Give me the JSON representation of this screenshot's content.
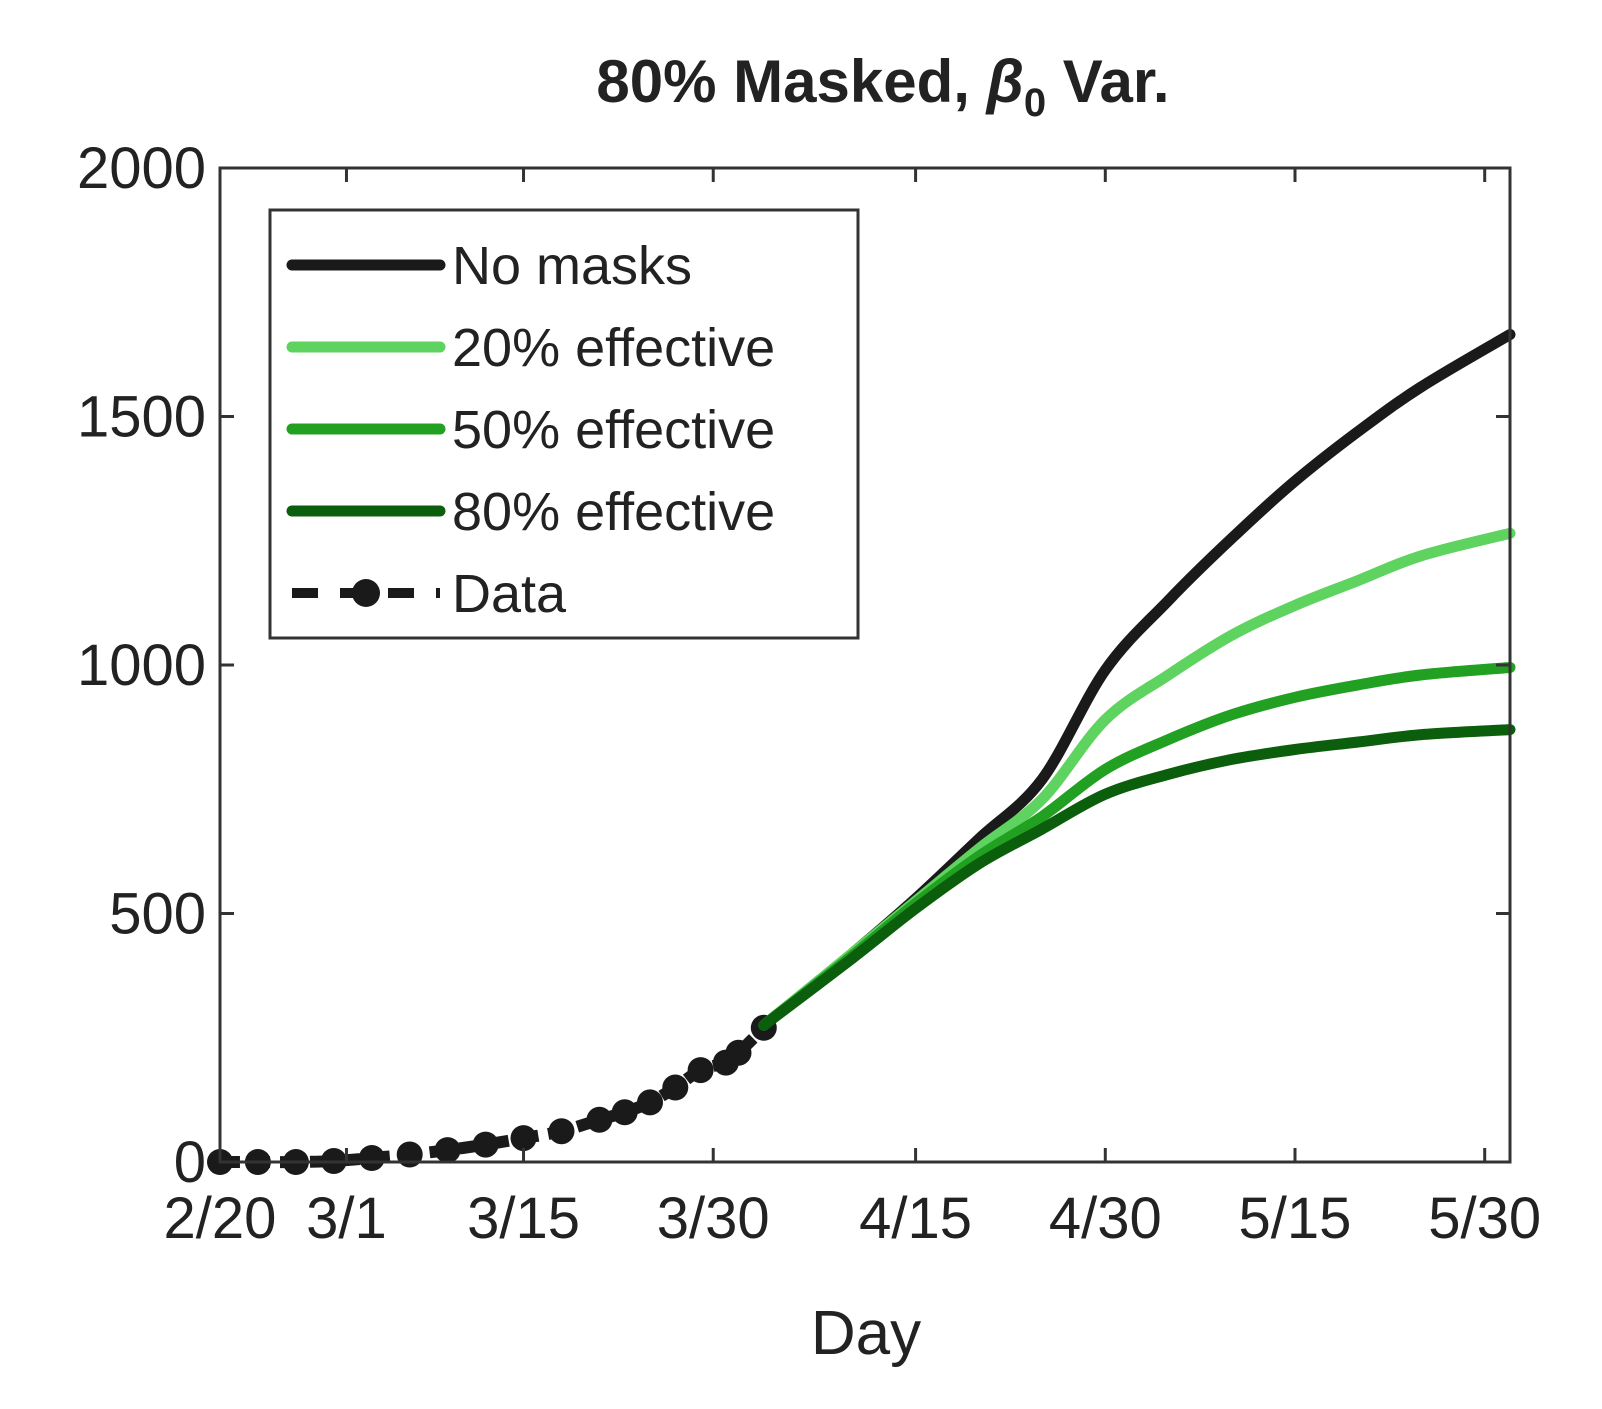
{
  "chart_data": {
    "type": "line",
    "title": {
      "prefix": "80% Masked, ",
      "symbol": "β",
      "subscript": "0",
      "suffix": " Var."
    },
    "xlabel": "Day",
    "ylabel": "",
    "x_reference_date": "2/20",
    "x_ticks": [
      {
        "label": "2/20",
        "date": "2/20"
      },
      {
        "label": "3/1",
        "date": "3/1"
      },
      {
        "label": "3/15",
        "date": "3/15"
      },
      {
        "label": "3/30",
        "date": "3/30"
      },
      {
        "label": "4/15",
        "date": "4/15"
      },
      {
        "label": "4/30",
        "date": "4/30"
      },
      {
        "label": "5/15",
        "date": "5/15"
      },
      {
        "label": "5/30",
        "date": "5/30"
      }
    ],
    "xlim": [
      "2/20",
      "6/1"
    ],
    "ylim": [
      0,
      2000
    ],
    "y_ticks": [
      0,
      500,
      1000,
      1500,
      2000
    ],
    "grid": false,
    "legend_position": "top-left",
    "colors": {
      "no_masks": "#1a1a1a",
      "eff20": "#5fd35f",
      "eff50": "#22a022",
      "eff80": "#0b5e0b",
      "data": "#1a1a1a"
    },
    "series": [
      {
        "name": "No masks",
        "color_key": "no_masks",
        "style": "solid",
        "points": [
          [
            "4/3",
            275
          ],
          [
            "4/10",
            420
          ],
          [
            "4/15",
            530
          ],
          [
            "4/20",
            650
          ],
          [
            "4/25",
            770
          ],
          [
            "4/30",
            990
          ],
          [
            "5/5",
            1130
          ],
          [
            "5/10",
            1255
          ],
          [
            "5/15",
            1370
          ],
          [
            "5/20",
            1470
          ],
          [
            "5/25",
            1560
          ],
          [
            "6/1",
            1665
          ]
        ]
      },
      {
        "name": "20% effective",
        "color_key": "eff20",
        "style": "solid",
        "points": [
          [
            "4/3",
            275
          ],
          [
            "4/10",
            420
          ],
          [
            "4/15",
            525
          ],
          [
            "4/20",
            630
          ],
          [
            "4/25",
            730
          ],
          [
            "4/30",
            890
          ],
          [
            "5/5",
            980
          ],
          [
            "5/10",
            1060
          ],
          [
            "5/15",
            1120
          ],
          [
            "5/20",
            1170
          ],
          [
            "5/25",
            1220
          ],
          [
            "6/1",
            1265
          ]
        ]
      },
      {
        "name": "50% effective",
        "color_key": "eff50",
        "style": "solid",
        "points": [
          [
            "4/3",
            275
          ],
          [
            "4/10",
            415
          ],
          [
            "4/15",
            520
          ],
          [
            "4/20",
            615
          ],
          [
            "4/25",
            695
          ],
          [
            "4/30",
            790
          ],
          [
            "5/5",
            850
          ],
          [
            "5/10",
            900
          ],
          [
            "5/15",
            935
          ],
          [
            "5/20",
            960
          ],
          [
            "5/25",
            980
          ],
          [
            "6/1",
            995
          ]
        ]
      },
      {
        "name": "80% effective",
        "color_key": "eff80",
        "style": "solid",
        "points": [
          [
            "4/3",
            275
          ],
          [
            "4/10",
            410
          ],
          [
            "4/15",
            510
          ],
          [
            "4/20",
            600
          ],
          [
            "4/25",
            670
          ],
          [
            "4/30",
            740
          ],
          [
            "5/5",
            780
          ],
          [
            "5/10",
            810
          ],
          [
            "5/15",
            830
          ],
          [
            "5/20",
            845
          ],
          [
            "5/25",
            860
          ],
          [
            "6/1",
            870
          ]
        ]
      },
      {
        "name": "Data",
        "color_key": "data",
        "style": "dashed-markers",
        "points": [
          [
            "2/20",
            0
          ],
          [
            "2/23",
            0
          ],
          [
            "2/26",
            0
          ],
          [
            "2/29",
            2
          ],
          [
            "3/3",
            8
          ],
          [
            "3/6",
            15
          ],
          [
            "3/9",
            24
          ],
          [
            "3/12",
            35
          ],
          [
            "3/15",
            48
          ],
          [
            "3/18",
            62
          ],
          [
            "3/21",
            85
          ],
          [
            "3/23",
            100
          ],
          [
            "3/25",
            120
          ],
          [
            "3/27",
            150
          ],
          [
            "3/29",
            185
          ],
          [
            "3/31",
            200
          ],
          [
            "4/1",
            220
          ],
          [
            "4/3",
            270
          ]
        ]
      }
    ]
  }
}
